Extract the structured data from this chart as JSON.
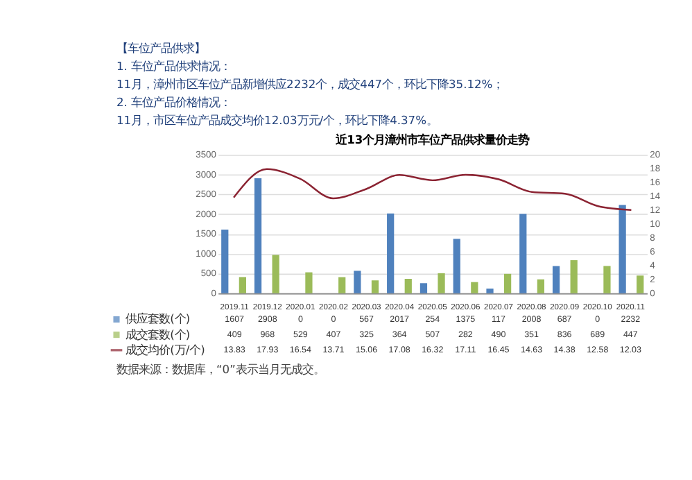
{
  "chart_data": {
    "type": "bar",
    "title": "近13个月漳州市车位产品供求量价走势",
    "annotations": [
      "【车位产品供求】",
      "1. 车位产品供求情况：",
      "11月，漳州市区车位产品新增供应2232个，成交447个，环比下降35.12%；",
      "2. 车位产品价格情况：",
      "11月，市区车位产品成交均价12.03万元/个，环比下降4.37%。",
      "数据来源：数据库，“0”表示当月无成交。"
    ],
    "categories": [
      "2019.11",
      "2019.12",
      "2020.01",
      "2020.02",
      "2020.03",
      "2020.04",
      "2020.05",
      "2020.06",
      "2020.07",
      "2020.08",
      "2020.09",
      "2020.10",
      "2020.11"
    ],
    "series": [
      {
        "name": "供应套数(个)",
        "color": "#4f81bd",
        "values": [
          1607,
          2908,
          0,
          0,
          567,
          2017,
          254,
          1375,
          117,
          2008,
          687,
          0,
          2232
        ]
      },
      {
        "name": "成交套数(个)",
        "color": "#9bbb59",
        "values": [
          409,
          968,
          529,
          407,
          325,
          364,
          507,
          282,
          490,
          351,
          836,
          689,
          447
        ]
      },
      {
        "name": "成交均价(万/个)",
        "color": "#8b2332",
        "type": "line",
        "axis": "y2",
        "values": [
          13.83,
          17.93,
          16.54,
          13.71,
          15.06,
          17.08,
          16.32,
          17.11,
          16.45,
          14.63,
          14.38,
          12.58,
          12.03
        ]
      }
    ],
    "ylim": [
      0,
      3500
    ],
    "yticks": [
      0,
      500,
      1000,
      1500,
      2000,
      2500,
      3000,
      3500
    ],
    "y2lim": [
      0,
      20
    ],
    "y2ticks": [
      0,
      2,
      4,
      6,
      8,
      10,
      12,
      14,
      16,
      18,
      20
    ],
    "data_labels": true,
    "legend": "bottom",
    "grid": "y"
  }
}
